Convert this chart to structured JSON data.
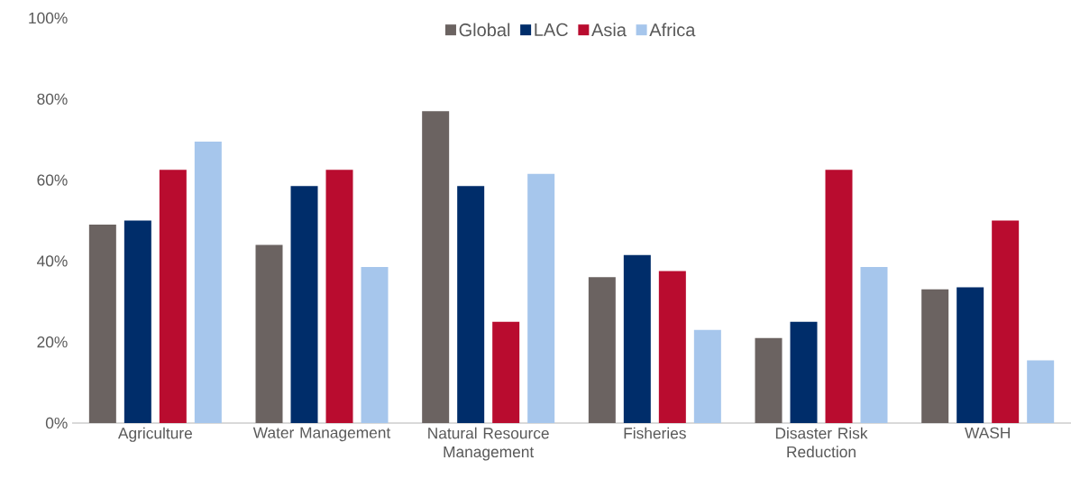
{
  "chart_data": {
    "type": "bar",
    "categories": [
      "Agriculture",
      "Water Management",
      "Natural Resource Management",
      "Fisheries",
      "Disaster Risk Reduction",
      "WASH"
    ],
    "series": [
      {
        "name": "Global",
        "color": "#6b6361",
        "values": [
          49,
          44,
          77,
          36,
          21,
          33
        ]
      },
      {
        "name": "LAC",
        "color": "#002d6a",
        "values": [
          50,
          58.5,
          58.5,
          41.5,
          25,
          33.5
        ]
      },
      {
        "name": "Asia",
        "color": "#b90c2f",
        "values": [
          62.5,
          62.5,
          25,
          37.5,
          62.5,
          50
        ]
      },
      {
        "name": "Africa",
        "color": "#a6c6ec",
        "values": [
          69.5,
          38.5,
          61.5,
          23,
          38.5,
          15.5
        ]
      }
    ],
    "ylim": [
      0,
      100
    ],
    "yticks": [
      {
        "value": 0,
        "label": "0%"
      },
      {
        "value": 20,
        "label": "20%"
      },
      {
        "value": 40,
        "label": "40%"
      },
      {
        "value": 60,
        "label": "60%"
      },
      {
        "value": 80,
        "label": "80%"
      },
      {
        "value": 100,
        "label": "100%"
      }
    ],
    "legend": "top"
  }
}
